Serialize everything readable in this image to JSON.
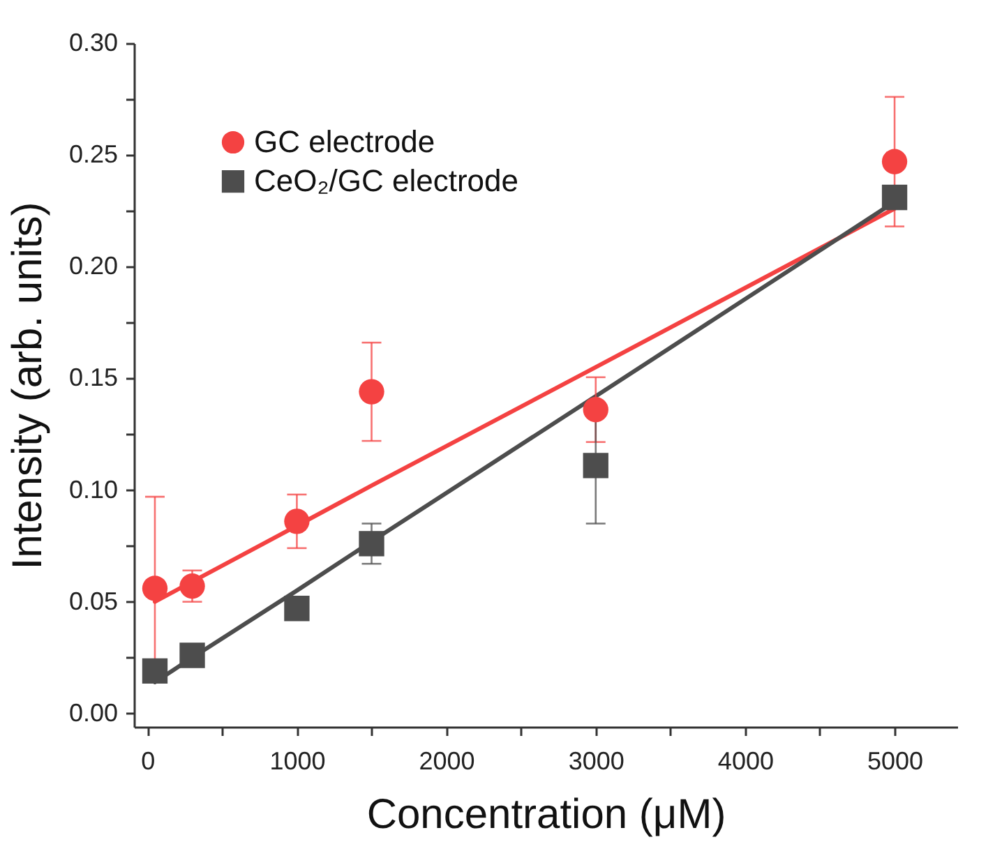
{
  "chart_data": {
    "type": "scatter",
    "xlabel": "Concentration (μM)",
    "ylabel": "Intensity (arb. units)",
    "xlim": [
      -90,
      5420
    ],
    "ylim": [
      -0.006,
      0.3
    ],
    "xticks": [
      0,
      {
        "value": 500,
        "label": null
      },
      1000,
      {
        "value": 1500,
        "label": null
      },
      2000,
      {
        "value": 2500,
        "label": null
      },
      3000,
      {
        "value": 3500,
        "label": null
      },
      4000,
      {
        "value": 4500,
        "label": null
      },
      5000
    ],
    "yticks": [
      {
        "value": 0,
        "label": "0.00"
      },
      {
        "value": 0.025,
        "label": null
      },
      {
        "value": 0.05,
        "label": "0.05"
      },
      {
        "value": 0.075,
        "label": null
      },
      {
        "value": 0.1,
        "label": "0.10"
      },
      {
        "value": 0.125,
        "label": null
      },
      {
        "value": 0.15,
        "label": "0.15"
      },
      {
        "value": 0.175,
        "label": null
      },
      {
        "value": 0.2,
        "label": "0.20"
      },
      {
        "value": 0.225,
        "label": null
      },
      {
        "value": 0.25,
        "label": "0.25"
      },
      {
        "value": 0.275,
        "label": null
      },
      {
        "value": 0.3,
        "label": "0.30"
      }
    ],
    "x": [
      50,
      300,
      1000,
      1500,
      3000,
      5000
    ],
    "grid": false,
    "legend": "top left",
    "series": [
      {
        "name": "GC electrode",
        "marker": "circle",
        "color": "#f44242",
        "values": [
          0.056,
          0.057,
          0.086,
          0.144,
          0.136,
          0.247
        ],
        "errors": [
          0.041,
          0.007,
          0.012,
          0.022,
          0.0145,
          0.029
        ]
      },
      {
        "name": "CeO₂/GC electrode",
        "marker": "square",
        "color": "#4d4d4d",
        "values": [
          0.019,
          0.026,
          0.047,
          0.076,
          0.111,
          0.231
        ],
        "errors": [
          null,
          null,
          null,
          0.009,
          0.026,
          null
        ]
      },
      {
        "type": "line",
        "color": "#f44242",
        "values": [
          0.05,
          0.059,
          0.084,
          0.102,
          0.155,
          0.226
        ]
      },
      {
        "type": "line",
        "color": "#4d4d4d",
        "values": [
          0.014,
          0.025,
          0.055,
          0.077,
          0.142,
          0.229
        ]
      }
    ]
  }
}
